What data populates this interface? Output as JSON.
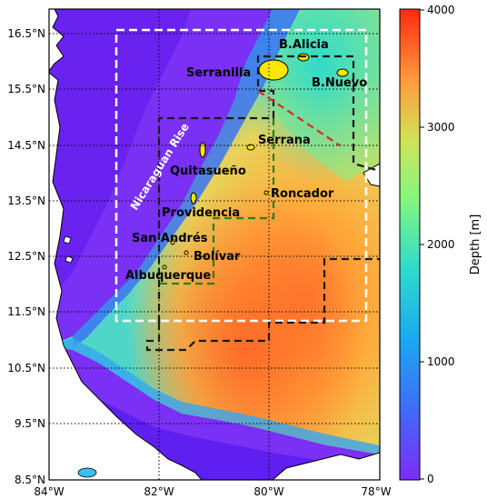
{
  "map": {
    "lat_ticks": [
      "16.5°N",
      "15.5°N",
      "14.5°N",
      "13.5°N",
      "12.5°N",
      "11.5°N",
      "10.5°N",
      "9.5°N",
      "8.5°N"
    ],
    "lon_ticks": [
      "84°W",
      "82°W",
      "80°W",
      "78°W"
    ],
    "places": {
      "b_alicia": "B.Alicia",
      "serranilla": "Serranilla",
      "b_nuevo": "B.Nuevo",
      "serrana": "Serrana",
      "quitasueno": "Quitasueño",
      "roncador": "Roncador",
      "providencia": "Providencia",
      "san_andres": "San Andrés",
      "bolivar": "Bolívar",
      "albuquerque": "Albuquerque"
    },
    "feature_label": "Nicaraguan Rise",
    "colors": {
      "land": "#ffffff",
      "island_fill": "#ffe600",
      "box_white": "#ffffff",
      "box_black": "#1a1a1a",
      "box_green": "#2e7d1e",
      "box_red": "#e0281e"
    }
  },
  "colorbar": {
    "label": "Depth [m]",
    "ticks": [
      "4000",
      "3000",
      "2000",
      "1000",
      "0"
    ],
    "colormap": "rainbow (purple→blue→cyan→green→yellow→orange→red)"
  }
}
